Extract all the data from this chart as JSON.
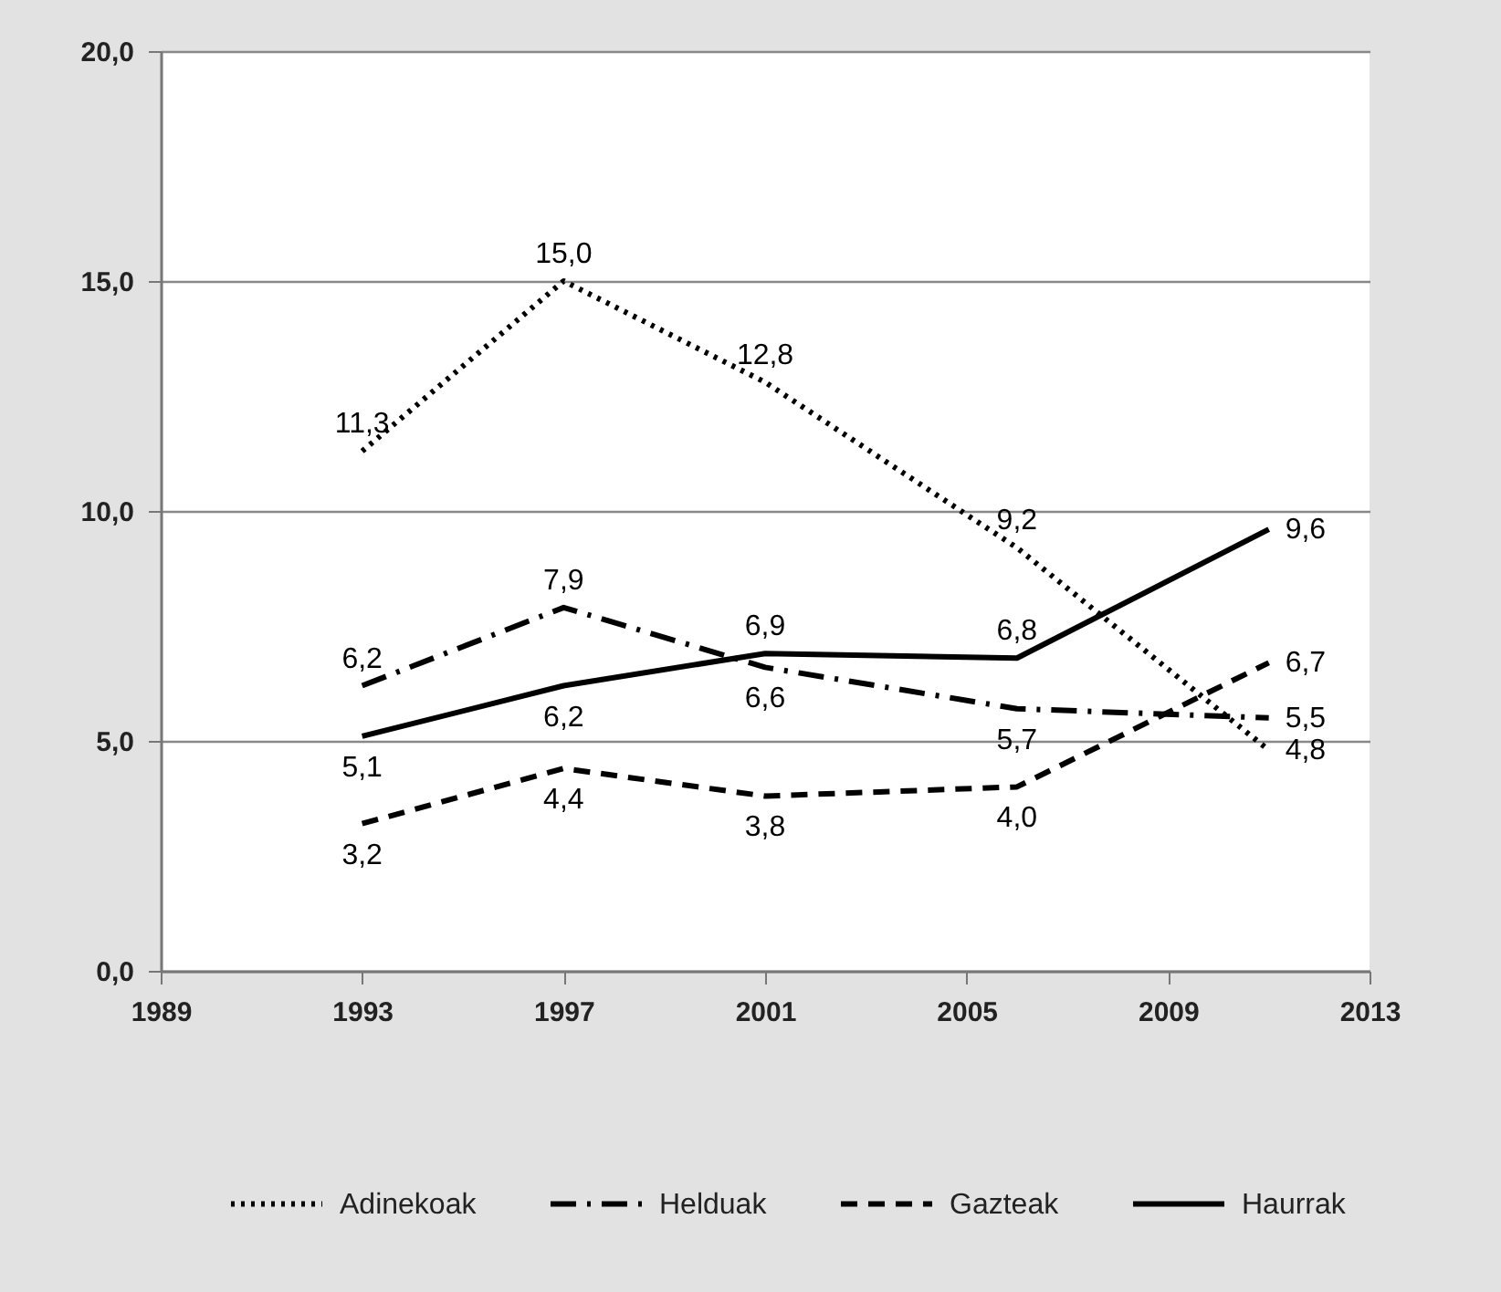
{
  "chart_data": {
    "type": "line",
    "x": [
      1993,
      1997,
      2001,
      2006,
      2011
    ],
    "xlim": [
      1989,
      2013
    ],
    "xticks": [
      1989,
      1993,
      1997,
      2001,
      2005,
      2009,
      2013
    ],
    "ylim": [
      0,
      20
    ],
    "yticks": [
      {
        "value": 0,
        "label": "0,0"
      },
      {
        "value": 5,
        "label": "5,0"
      },
      {
        "value": 10,
        "label": "10,0"
      },
      {
        "value": 15,
        "label": "15,0"
      },
      {
        "value": 20,
        "label": "20,0"
      }
    ],
    "grid": "y",
    "legend": "bottom",
    "series": [
      {
        "name": "Adinekoak",
        "color": "#000000",
        "line_style": "dotted",
        "values": [
          11.3,
          15.0,
          12.8,
          9.2,
          4.8
        ],
        "value_labels": [
          "11,3",
          "15,0",
          "12,8",
          "9,2",
          "4,8"
        ]
      },
      {
        "name": "Helduak",
        "color": "#000000",
        "line_style": "dashdot",
        "values": [
          6.2,
          7.9,
          6.6,
          5.7,
          5.5
        ],
        "value_labels": [
          "6,2",
          "7,9",
          "6,6",
          "5,7",
          "5,5"
        ]
      },
      {
        "name": "Gazteak",
        "color": "#000000",
        "line_style": "dashed",
        "values": [
          3.2,
          4.4,
          3.8,
          4.0,
          6.7
        ],
        "value_labels": [
          "3,2",
          "4,4",
          "3,8",
          "4,0",
          "6,7"
        ]
      },
      {
        "name": "Haurrak",
        "color": "#000000",
        "line_style": "solid",
        "values": [
          5.1,
          6.2,
          6.9,
          6.8,
          9.6
        ],
        "value_labels": [
          "5,1",
          "6,2",
          "6,9",
          "6,8",
          "9,6"
        ]
      }
    ]
  }
}
